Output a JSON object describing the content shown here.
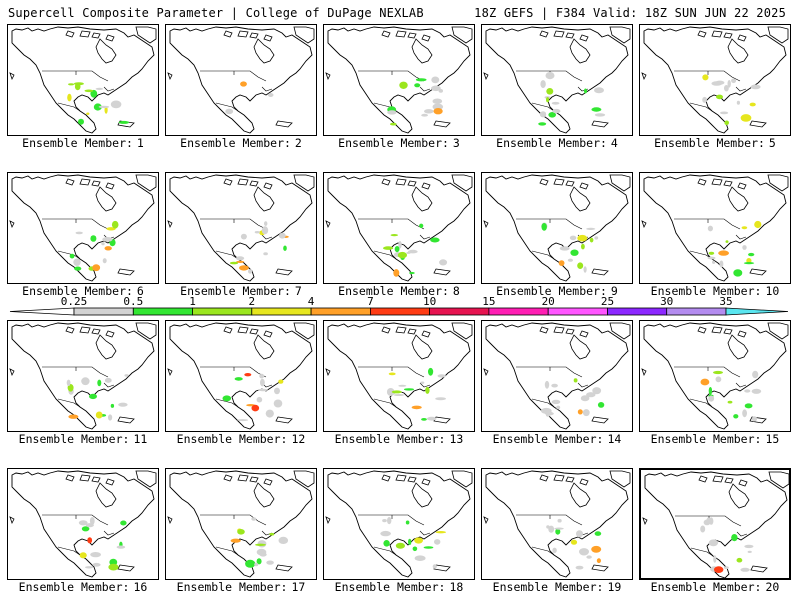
{
  "header": {
    "title_left": "Supercell Composite Parameter | College of DuPage NEXLAB",
    "title_right": "18Z GEFS | F384 Valid: 18Z SUN JUN 22 2025"
  },
  "member_prefix": "Ensemble Member:",
  "members": [
    "1",
    "2",
    "3",
    "4",
    "5",
    "6",
    "7",
    "8",
    "9",
    "10",
    "11",
    "12",
    "13",
    "14",
    "15",
    "16",
    "17",
    "18",
    "19",
    "20"
  ],
  "highlighted_member": "20",
  "colorbar": {
    "levels": [
      "0.25",
      "0.5",
      "1",
      "2",
      "4",
      "7",
      "10",
      "15",
      "20",
      "25",
      "30",
      "35"
    ],
    "colors": [
      "#d3d3d3",
      "#32e632",
      "#9be61e",
      "#e6e61e",
      "#ffa028",
      "#ff3c14",
      "#e61450",
      "#ff1eb4",
      "#ff55ff",
      "#8c28ff",
      "#b48cf0",
      "#5ae6f0"
    ],
    "low_color": "#ffffff",
    "high_color": "#5ae6f0"
  },
  "legend_colors": {
    "0.25": "#d3d3d3",
    "0.5": "#32e632",
    "1": "#9be61e",
    "2": "#e6e61e",
    "4": "#ffa028",
    "7": "#ff3c14",
    "10": "#e61450",
    "15": "#ff1eb4"
  }
}
